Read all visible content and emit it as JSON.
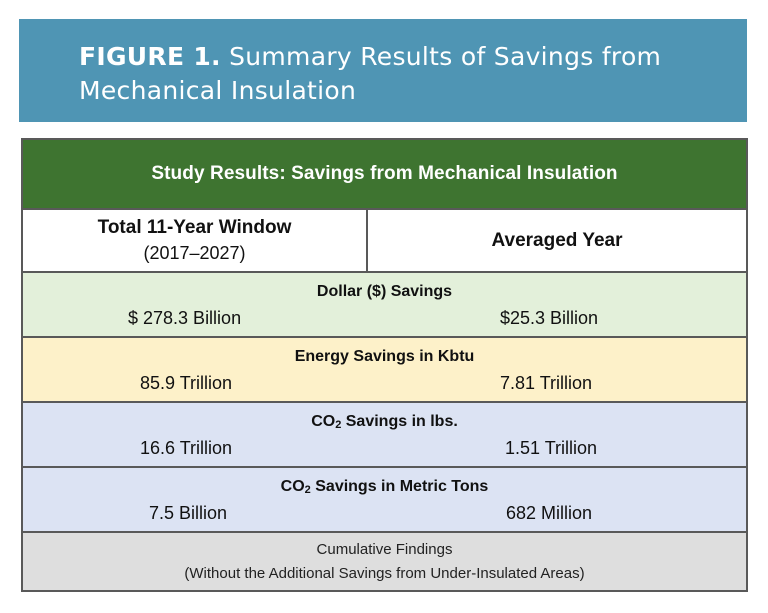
{
  "figure": {
    "label": "FIGURE 1.",
    "title_line1": "Summary Results of Savings from",
    "title_line2": "Mechanical Insulation"
  },
  "table": {
    "title": "Study Results: Savings from Mechanical Insulation",
    "columns": {
      "left_title": "Total 11-Year Window",
      "left_subtitle": "(2017–2027)",
      "right_title": "Averaged Year"
    },
    "rows": {
      "dollar": {
        "title": "Dollar ($) Savings",
        "total": "$ 278.3 Billion",
        "averaged": "$25.3 Billion"
      },
      "energy": {
        "title": "Energy Savings in Kbtu",
        "total": "85.9 Trillion",
        "averaged": "7.81 Trillion"
      },
      "co2_lbs": {
        "title_prefix": "CO",
        "title_sub": "2",
        "title_suffix": " Savings in lbs.",
        "total": "16.6 Trillion",
        "averaged": "1.51 Trillion"
      },
      "co2_mt": {
        "title_prefix": "CO",
        "title_sub": "2",
        "title_suffix": " Savings in Metric Tons",
        "total": "7.5 Billion",
        "averaged": "682 Million"
      }
    },
    "footer": {
      "line1": "Cumulative Findings",
      "line2": "(Without the Additional Savings from Under-Insulated Areas)"
    }
  },
  "colors": {
    "header_bg": "#4f95b4",
    "title_bg": "#3e7430",
    "dollar_bg": "#e3f0da",
    "energy_bg": "#fdf1c9",
    "co2_bg": "#dce3f3",
    "footer_bg": "#dedede"
  }
}
